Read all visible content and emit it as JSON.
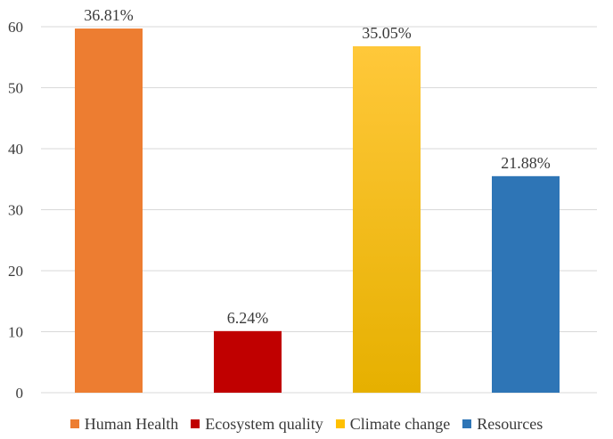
{
  "chart_data": {
    "type": "bar",
    "title": "",
    "xlabel": "",
    "ylabel": "",
    "ylim": [
      0,
      60
    ],
    "yticks": [
      0,
      10,
      20,
      30,
      40,
      50,
      60
    ],
    "grid": true,
    "legend_position": "bottom",
    "categories": [
      "Human Health",
      "Ecosystem quality",
      "Climate change",
      "Resources"
    ],
    "values": [
      59.7,
      10.1,
      56.8,
      35.5
    ],
    "data_labels": [
      "36.81%",
      "6.24%",
      "35.05%",
      "21.88%"
    ],
    "colors": [
      "#ED7D31",
      "#C00000",
      "#FFC000",
      "#2E75B6"
    ]
  }
}
